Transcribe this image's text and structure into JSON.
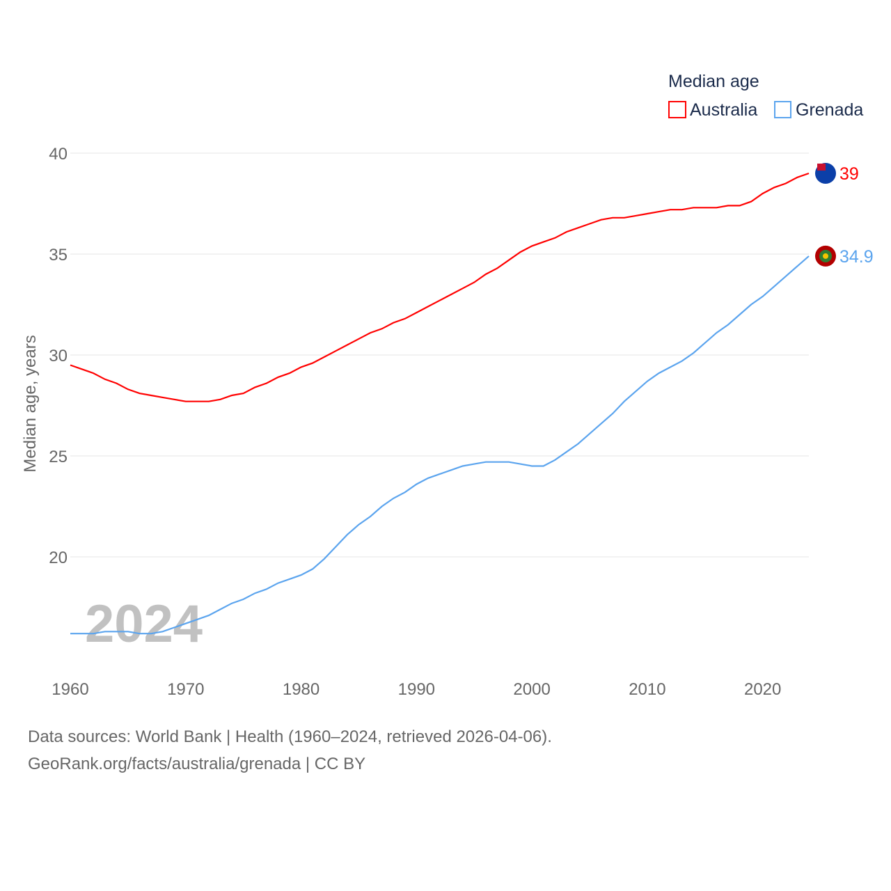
{
  "chart_data": {
    "type": "line",
    "title": "",
    "ylabel": "Median age, years",
    "xlabel": "",
    "xlim": [
      1960,
      2024
    ],
    "ylim": [
      15,
      40
    ],
    "yticks": [
      20,
      25,
      30,
      35,
      40
    ],
    "xticks": [
      1960,
      1970,
      1980,
      1990,
      2000,
      2010,
      2020
    ],
    "grid": true,
    "legend_title": "Median age",
    "legend_position": "top-right",
    "watermark_year": "2024",
    "x": [
      1960,
      1961,
      1962,
      1963,
      1964,
      1965,
      1966,
      1967,
      1968,
      1969,
      1970,
      1971,
      1972,
      1973,
      1974,
      1975,
      1976,
      1977,
      1978,
      1979,
      1980,
      1981,
      1982,
      1983,
      1984,
      1985,
      1986,
      1987,
      1988,
      1989,
      1990,
      1991,
      1992,
      1993,
      1994,
      1995,
      1996,
      1997,
      1998,
      1999,
      2000,
      2001,
      2002,
      2003,
      2004,
      2005,
      2006,
      2007,
      2008,
      2009,
      2010,
      2011,
      2012,
      2013,
      2014,
      2015,
      2016,
      2017,
      2018,
      2019,
      2020,
      2021,
      2022,
      2023,
      2024
    ],
    "series": [
      {
        "name": "Australia",
        "color": "#ff0000",
        "end_label": "39",
        "values": [
          29.5,
          29.3,
          29.1,
          28.8,
          28.6,
          28.3,
          28.1,
          28.0,
          27.9,
          27.8,
          27.7,
          27.7,
          27.7,
          27.8,
          28.0,
          28.1,
          28.4,
          28.6,
          28.9,
          29.1,
          29.4,
          29.6,
          29.9,
          30.2,
          30.5,
          30.8,
          31.1,
          31.3,
          31.6,
          31.8,
          32.1,
          32.4,
          32.7,
          33.0,
          33.3,
          33.6,
          34.0,
          34.3,
          34.7,
          35.1,
          35.4,
          35.6,
          35.8,
          36.1,
          36.3,
          36.5,
          36.7,
          36.8,
          36.8,
          36.9,
          37.0,
          37.1,
          37.2,
          37.2,
          37.3,
          37.3,
          37.3,
          37.4,
          37.4,
          37.6,
          38.0,
          38.3,
          38.5,
          38.8,
          39.0
        ]
      },
      {
        "name": "Grenada",
        "color": "#5ba4ee",
        "end_label": "34.9",
        "values": [
          16.2,
          16.2,
          16.2,
          16.3,
          16.3,
          16.3,
          16.2,
          16.2,
          16.3,
          16.5,
          16.7,
          16.9,
          17.1,
          17.4,
          17.7,
          17.9,
          18.2,
          18.4,
          18.7,
          18.9,
          19.1,
          19.4,
          19.9,
          20.5,
          21.1,
          21.6,
          22.0,
          22.5,
          22.9,
          23.2,
          23.6,
          23.9,
          24.1,
          24.3,
          24.5,
          24.6,
          24.7,
          24.7,
          24.7,
          24.6,
          24.5,
          24.5,
          24.8,
          25.2,
          25.6,
          26.1,
          26.6,
          27.1,
          27.7,
          28.2,
          28.7,
          29.1,
          29.4,
          29.7,
          30.1,
          30.6,
          31.1,
          31.5,
          32.0,
          32.5,
          32.9,
          33.4,
          33.9,
          34.4,
          34.9
        ]
      }
    ]
  },
  "footer": {
    "line1": "Data sources: World Bank | Health (1960–2024, retrieved 2026-04-06).",
    "line2": "GeoRank.org/facts/australia/grenada | CC BY"
  }
}
